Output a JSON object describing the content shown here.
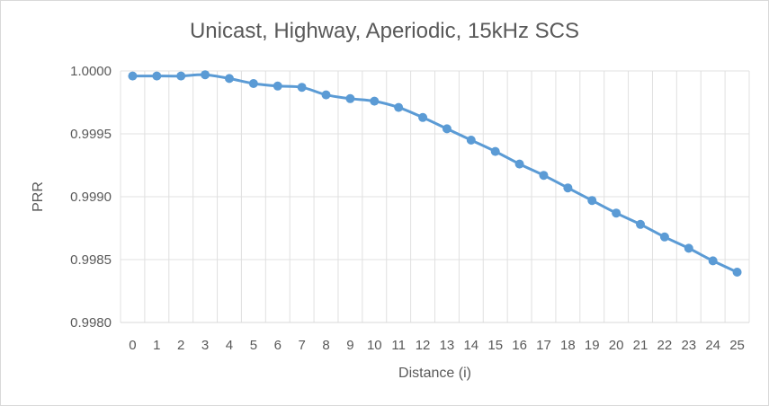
{
  "chart_data": {
    "type": "line",
    "title": "Unicast, Highway, Aperiodic, 15kHz SCS",
    "xlabel": "Distance (i)",
    "ylabel": "PRR",
    "x": [
      0,
      1,
      2,
      3,
      4,
      5,
      6,
      7,
      8,
      9,
      10,
      11,
      12,
      13,
      14,
      15,
      16,
      17,
      18,
      19,
      20,
      21,
      22,
      23,
      24,
      25
    ],
    "series": [
      {
        "values": [
          0.99996,
          0.99996,
          0.99996,
          0.99997,
          0.99994,
          0.9999,
          0.99988,
          0.99987,
          0.99981,
          0.99978,
          0.99976,
          0.99971,
          0.99963,
          0.99954,
          0.99945,
          0.99936,
          0.99926,
          0.99917,
          0.99907,
          0.99897,
          0.99887,
          0.99878,
          0.99868,
          0.99859,
          0.99849,
          0.9984
        ],
        "color": "#5b9bd5",
        "marker": "circle"
      }
    ],
    "ylim": [
      0.998,
      1.0
    ],
    "y_ticks": [
      "0.9980",
      "0.9985",
      "0.9990",
      "0.9995",
      "1.0000"
    ],
    "y_tick_values": [
      0.998,
      0.9985,
      0.999,
      0.9995,
      1.0
    ],
    "grid": {
      "horizontal": true,
      "vertical": true
    },
    "legend": "none"
  },
  "colors": {
    "series": "#5b9bd5",
    "grid": "#e0e0e0",
    "text": "#595959"
  }
}
